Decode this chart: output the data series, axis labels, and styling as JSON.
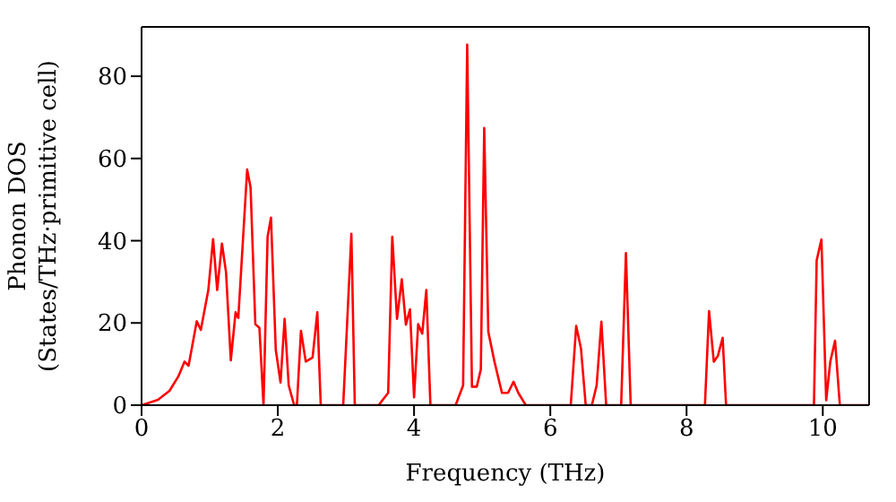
{
  "chart_data": {
    "type": "line",
    "xlabel": "Frequency (THz)",
    "ylabel": "Phonon DOS\n(States/THz·primitive cell)",
    "xlim": [
      0,
      10.68
    ],
    "ylim": [
      0,
      92
    ],
    "xticks": [
      0,
      2,
      4,
      6,
      8,
      10
    ],
    "yticks": [
      0,
      20,
      40,
      60,
      80
    ],
    "marker": "none",
    "line_style": "solid",
    "x": [
      0,
      0.24,
      0.41,
      0.54,
      0.63,
      0.69,
      0.81,
      0.87,
      0.98,
      1.05,
      1.11,
      1.18,
      1.24,
      1.31,
      1.38,
      1.42,
      1.55,
      1.6,
      1.67,
      1.73,
      1.79,
      1.85,
      1.9,
      1.97,
      2.04,
      2.1,
      2.16,
      2.24,
      2.28,
      2.34,
      2.41,
      2.51,
      2.58,
      2.63,
      2.96,
      3.08,
      3.13,
      3.48,
      3.62,
      3.68,
      3.75,
      3.82,
      3.88,
      3.94,
      4.0,
      4.06,
      4.12,
      4.18,
      4.24,
      4.61,
      4.72,
      4.78,
      4.85,
      4.92,
      4.98,
      5.03,
      5.09,
      5.18,
      5.29,
      5.38,
      5.46,
      5.53,
      5.64,
      6.3,
      6.38,
      6.45,
      6.52,
      6.61,
      6.68,
      6.75,
      6.82,
      7.04,
      7.11,
      7.18,
      8.27,
      8.33,
      8.4,
      8.46,
      8.53,
      8.58,
      9.87,
      9.91,
      9.98,
      10.05,
      10.11,
      10.18,
      10.25,
      10.68
    ],
    "series": [
      {
        "color": "#ff0000",
        "values": [
          0,
          1.3,
          3.5,
          7,
          10.6,
          9.6,
          20.4,
          18.3,
          28,
          40.4,
          28,
          39.3,
          32.3,
          10.9,
          22.6,
          21.2,
          57.3,
          53,
          19.7,
          18.8,
          0,
          41,
          45.6,
          13.5,
          5.5,
          21,
          4.8,
          0,
          0,
          18.1,
          10.6,
          11.6,
          22.6,
          0,
          0,
          41.7,
          0,
          0,
          3,
          41,
          21,
          30.6,
          19.6,
          23.3,
          1.9,
          19.7,
          17.4,
          28,
          0,
          0,
          4.8,
          87.7,
          4.5,
          4.5,
          8.7,
          67.4,
          17.8,
          10.6,
          3,
          3,
          5.7,
          3,
          0,
          0,
          19.3,
          13.8,
          0,
          0,
          4.8,
          20.3,
          0,
          0,
          37,
          0,
          0,
          22.9,
          10.6,
          12,
          16.4,
          0,
          0,
          35.2,
          40.3,
          1.2,
          10.6,
          15.7,
          0,
          0
        ]
      }
    ]
  }
}
